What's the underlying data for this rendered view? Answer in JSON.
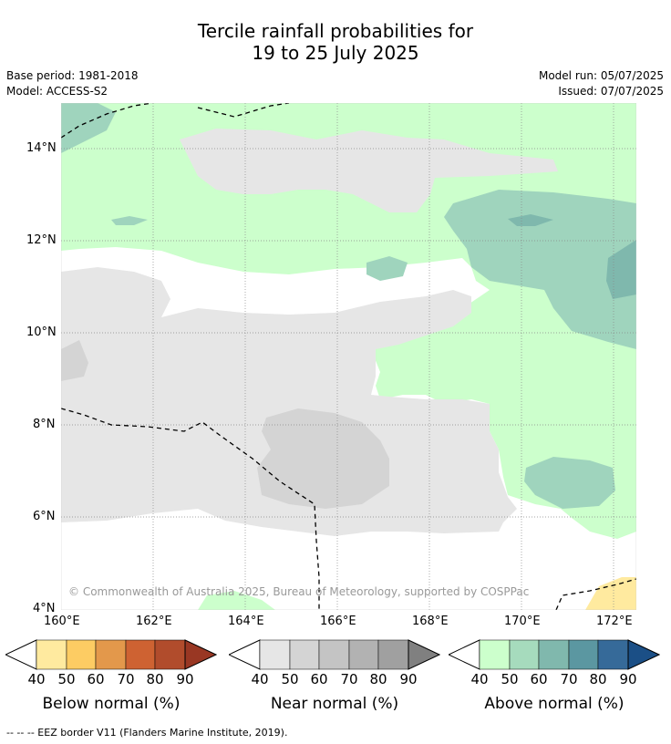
{
  "title": {
    "line1": "Tercile rainfall probabilities for",
    "line2": "19 to 25 July 2025"
  },
  "meta_left": {
    "base_period": "Base period: 1981-2018",
    "model": "Model: ACCESS-S2"
  },
  "meta_right": {
    "model_run": "Model run: 05/07/2025",
    "issued": "Issued: 07/07/2025"
  },
  "map": {
    "lat_ticks": [
      "14°N",
      "12°N",
      "10°N",
      "8°N",
      "6°N",
      "4°N"
    ],
    "lon_ticks": [
      "160°E",
      "162°E",
      "164°E",
      "166°E",
      "168°E",
      "170°E",
      "172°E"
    ],
    "copyright": "© Commonwealth of Australia 2025, Bureau of Meteorology, supported by COSPPac",
    "colors": {
      "ocean_neutral": "#ffffff",
      "near_40": "#e6e6e6",
      "near_50": "#d4d4d4",
      "above_40": "#ccffcc",
      "above_50": "#9fd4bd",
      "above_60": "#7fb8ad",
      "below_40": "#ffea9f"
    }
  },
  "legends": [
    {
      "name": "Below normal (%)",
      "ticks": [
        "40",
        "50",
        "60",
        "70",
        "80",
        "90"
      ],
      "colors": [
        "#ffea9f",
        "#fdcc63",
        "#e3984b",
        "#ce6232",
        "#b14c2c",
        "#993723"
      ]
    },
    {
      "name": "Near normal (%)",
      "ticks": [
        "40",
        "50",
        "60",
        "70",
        "80",
        "90"
      ],
      "colors": [
        "#e6e6e6",
        "#d4d4d4",
        "#c4c4c4",
        "#b2b2b2",
        "#a0a0a0",
        "#808080"
      ]
    },
    {
      "name": "Above normal (%)",
      "ticks": [
        "40",
        "50",
        "60",
        "70",
        "80",
        "90"
      ],
      "colors": [
        "#ccffcc",
        "#a6dbbd",
        "#80b8ad",
        "#5b97a1",
        "#366a99",
        "#1b4f86"
      ]
    }
  ],
  "footer": "--  --  -- EEZ border V11 (Flanders Marine Institute, 2019)."
}
